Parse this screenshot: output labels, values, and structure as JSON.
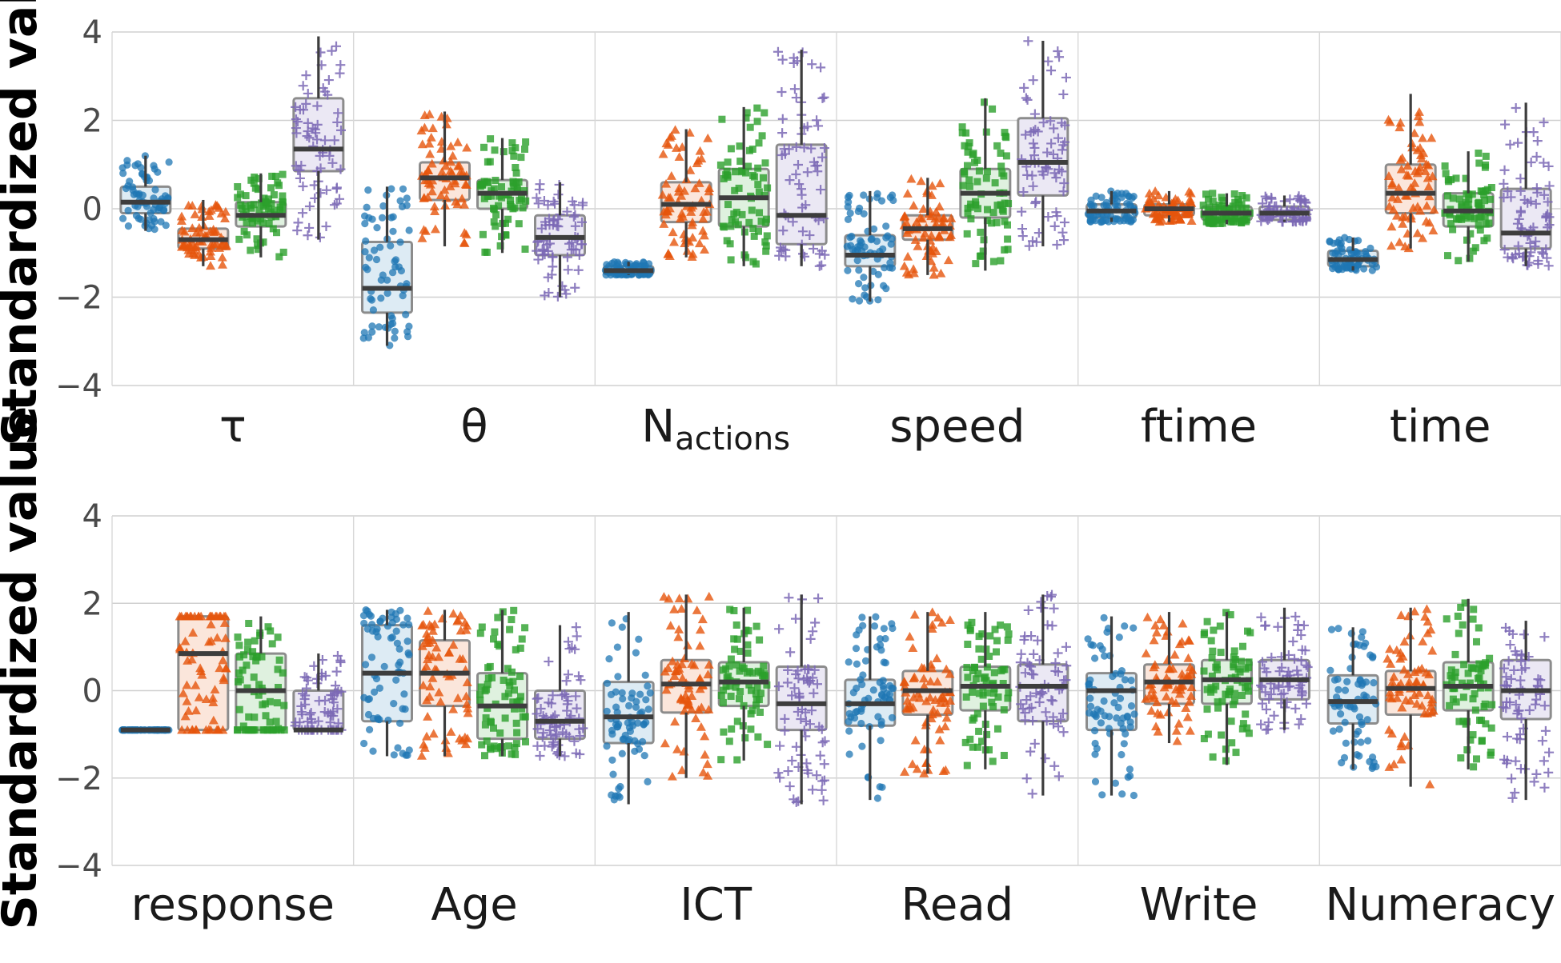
{
  "chart_data": [
    {
      "type": "box",
      "ylabel": "Standardized value",
      "ylim": [
        -4,
        4
      ],
      "yticks": [
        4,
        2,
        0,
        -2,
        -4
      ],
      "ytick_labels": [
        "4",
        "2",
        "0",
        "−2",
        "−4"
      ],
      "grid": true,
      "categories": [
        {
          "label": "τ",
          "sub": ""
        },
        {
          "label": "θ",
          "sub": ""
        },
        {
          "label": "N",
          "sub": "actions"
        },
        {
          "label": "speed",
          "sub": ""
        },
        {
          "label": "ftime",
          "sub": ""
        },
        {
          "label": "time",
          "sub": ""
        }
      ],
      "groups": [
        {
          "color": "#1f77b4",
          "marker": "circle",
          "boxes": [
            {
              "q1": -0.1,
              "median": 0.15,
              "q3": 0.5,
              "whislo": -0.5,
              "whishi": 1.2
            },
            {
              "q1": -2.35,
              "median": -1.8,
              "q3": -0.75,
              "whislo": -3.1,
              "whishi": 0.5
            },
            {
              "q1": -1.48,
              "median": -1.4,
              "q3": -1.3,
              "whislo": -1.5,
              "whishi": -1.2
            },
            {
              "q1": -1.3,
              "median": -1.05,
              "q3": -0.6,
              "whislo": -2.1,
              "whishi": 0.4
            },
            {
              "q1": -0.2,
              "median": -0.05,
              "q3": 0.1,
              "whislo": -0.3,
              "whishi": 0.4
            },
            {
              "q1": -1.3,
              "median": -1.15,
              "q3": -0.95,
              "whislo": -1.4,
              "whishi": -0.65
            }
          ]
        },
        {
          "color": "#e6550d",
          "marker": "triangle",
          "boxes": [
            {
              "q1": -0.9,
              "median": -0.7,
              "q3": -0.45,
              "whislo": -1.3,
              "whishi": 0.2
            },
            {
              "q1": 0.2,
              "median": 0.7,
              "q3": 1.05,
              "whislo": -0.85,
              "whishi": 2.2
            },
            {
              "q1": -0.3,
              "median": 0.1,
              "q3": 0.6,
              "whislo": -1.1,
              "whishi": 1.8
            },
            {
              "q1": -0.7,
              "median": -0.45,
              "q3": -0.15,
              "whislo": -1.5,
              "whishi": 0.7
            },
            {
              "q1": -0.15,
              "median": 0.0,
              "q3": 0.1,
              "whislo": -0.3,
              "whishi": 0.4
            },
            {
              "q1": -0.1,
              "median": 0.35,
              "q3": 1.0,
              "whislo": -0.9,
              "whishi": 2.6
            }
          ]
        },
        {
          "color": "#2ca02c",
          "marker": "square",
          "boxes": [
            {
              "q1": -0.4,
              "median": -0.15,
              "q3": 0.15,
              "whislo": -1.1,
              "whishi": 0.8
            },
            {
              "q1": 0.0,
              "median": 0.35,
              "q3": 0.65,
              "whislo": -1.0,
              "whishi": 1.6
            },
            {
              "q1": -0.4,
              "median": 0.25,
              "q3": 0.9,
              "whislo": -1.3,
              "whishi": 2.3
            },
            {
              "q1": -0.2,
              "median": 0.35,
              "q3": 0.9,
              "whislo": -1.4,
              "whishi": 2.5
            },
            {
              "q1": -0.25,
              "median": -0.1,
              "q3": 0.05,
              "whislo": -0.35,
              "whishi": 0.35
            },
            {
              "q1": -0.4,
              "median": -0.05,
              "q3": 0.35,
              "whislo": -1.2,
              "whishi": 1.3
            }
          ]
        },
        {
          "color": "#7b68b5",
          "marker": "plus",
          "boxes": [
            {
              "q1": 0.85,
              "median": 1.35,
              "q3": 2.5,
              "whislo": -0.7,
              "whishi": 3.9
            },
            {
              "q1": -1.05,
              "median": -0.65,
              "q3": -0.15,
              "whislo": -2.0,
              "whishi": 0.6
            },
            {
              "q1": -0.8,
              "median": -0.15,
              "q3": 1.45,
              "whislo": -1.3,
              "whishi": 3.6
            },
            {
              "q1": 0.3,
              "median": 1.05,
              "q3": 2.05,
              "whislo": -0.85,
              "whishi": 3.8
            },
            {
              "q1": -0.25,
              "median": -0.1,
              "q3": 0.05,
              "whislo": -0.3,
              "whishi": 0.3
            },
            {
              "q1": -0.9,
              "median": -0.55,
              "q3": 0.45,
              "whislo": -1.3,
              "whishi": 2.4
            }
          ]
        }
      ]
    },
    {
      "type": "box",
      "ylabel": "Standardized value",
      "ylim": [
        -4,
        4
      ],
      "yticks": [
        4,
        2,
        0,
        -2,
        -4
      ],
      "ytick_labels": [
        "4",
        "2",
        "0",
        "−2",
        "−4"
      ],
      "grid": true,
      "categories": [
        {
          "label": "response",
          "sub": ""
        },
        {
          "label": "Age",
          "sub": ""
        },
        {
          "label": "ICT",
          "sub": ""
        },
        {
          "label": "Read",
          "sub": ""
        },
        {
          "label": "Write",
          "sub": ""
        },
        {
          "label": "Numeracy",
          "sub": ""
        }
      ],
      "groups": [
        {
          "color": "#1f77b4",
          "marker": "circle",
          "boxes": [
            {
              "q1": -0.9,
              "median": -0.9,
              "q3": -0.9,
              "whislo": -0.9,
              "whishi": -0.9
            },
            {
              "q1": -0.7,
              "median": 0.4,
              "q3": 1.5,
              "whislo": -1.5,
              "whishi": 1.85
            },
            {
              "q1": -1.2,
              "median": -0.6,
              "q3": 0.2,
              "whislo": -2.6,
              "whishi": 1.8
            },
            {
              "q1": -0.8,
              "median": -0.3,
              "q3": 0.25,
              "whislo": -2.5,
              "whishi": 1.7
            },
            {
              "q1": -0.9,
              "median": 0.0,
              "q3": 0.4,
              "whislo": -2.4,
              "whishi": 1.7
            },
            {
              "q1": -0.75,
              "median": -0.25,
              "q3": 0.35,
              "whislo": -1.8,
              "whishi": 1.45
            }
          ]
        },
        {
          "color": "#e6550d",
          "marker": "triangle",
          "boxes": [
            {
              "q1": -0.9,
              "median": 0.85,
              "q3": 1.7,
              "whislo": -0.9,
              "whishi": 1.7
            },
            {
              "q1": -0.35,
              "median": 0.4,
              "q3": 1.15,
              "whislo": -1.5,
              "whishi": 1.85
            },
            {
              "q1": -0.5,
              "median": 0.15,
              "q3": 0.7,
              "whislo": -2.0,
              "whishi": 2.2
            },
            {
              "q1": -0.55,
              "median": 0.0,
              "q3": 0.45,
              "whislo": -1.9,
              "whishi": 1.8
            },
            {
              "q1": -0.3,
              "median": 0.2,
              "q3": 0.6,
              "whislo": -1.2,
              "whishi": 1.8
            },
            {
              "q1": -0.55,
              "median": 0.05,
              "q3": 0.45,
              "whislo": -2.2,
              "whishi": 1.9
            }
          ]
        },
        {
          "color": "#2ca02c",
          "marker": "square",
          "boxes": [
            {
              "q1": -0.9,
              "median": 0.0,
              "q3": 0.85,
              "whislo": -0.9,
              "whishi": 1.7
            },
            {
              "q1": -1.1,
              "median": -0.35,
              "q3": 0.4,
              "whislo": -1.5,
              "whishi": 1.85
            },
            {
              "q1": -0.35,
              "median": 0.2,
              "q3": 0.65,
              "whislo": -1.6,
              "whishi": 1.9
            },
            {
              "q1": -0.45,
              "median": 0.1,
              "q3": 0.55,
              "whislo": -1.8,
              "whishi": 1.8
            },
            {
              "q1": -0.3,
              "median": 0.25,
              "q3": 0.7,
              "whislo": -1.7,
              "whishi": 1.8
            },
            {
              "q1": -0.45,
              "median": 0.1,
              "q3": 0.65,
              "whislo": -1.8,
              "whishi": 2.1
            }
          ]
        },
        {
          "color": "#7b68b5",
          "marker": "plus",
          "boxes": [
            {
              "q1": -0.9,
              "median": -0.9,
              "q3": 0.0,
              "whislo": -0.9,
              "whishi": 0.85
            },
            {
              "q1": -1.1,
              "median": -0.7,
              "q3": 0.0,
              "whislo": -1.5,
              "whishi": 1.5
            },
            {
              "q1": -0.9,
              "median": -0.3,
              "q3": 0.55,
              "whislo": -2.6,
              "whishi": 2.2
            },
            {
              "q1": -0.7,
              "median": 0.1,
              "q3": 0.6,
              "whislo": -2.4,
              "whishi": 2.2
            },
            {
              "q1": -0.2,
              "median": 0.25,
              "q3": 0.7,
              "whislo": -0.9,
              "whishi": 1.9
            },
            {
              "q1": -0.65,
              "median": 0.0,
              "q3": 0.7,
              "whislo": -2.5,
              "whishi": 1.6
            }
          ]
        }
      ]
    }
  ]
}
